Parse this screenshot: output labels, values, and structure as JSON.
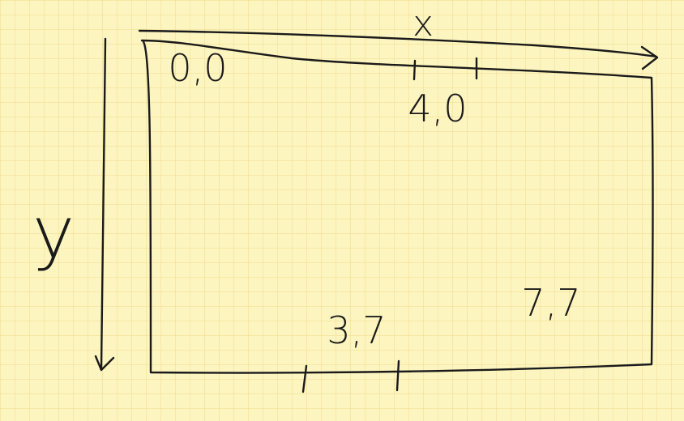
{
  "axes": {
    "x_label": "x",
    "y_label": "y"
  },
  "points": {
    "origin": "0,0",
    "top_mark": "4,0",
    "bottom_mark": "3,7",
    "corner": "7,7"
  },
  "colors": {
    "background": "#fdf5c0",
    "grid": "#f0d98a",
    "ink": "#1a1a1a"
  }
}
